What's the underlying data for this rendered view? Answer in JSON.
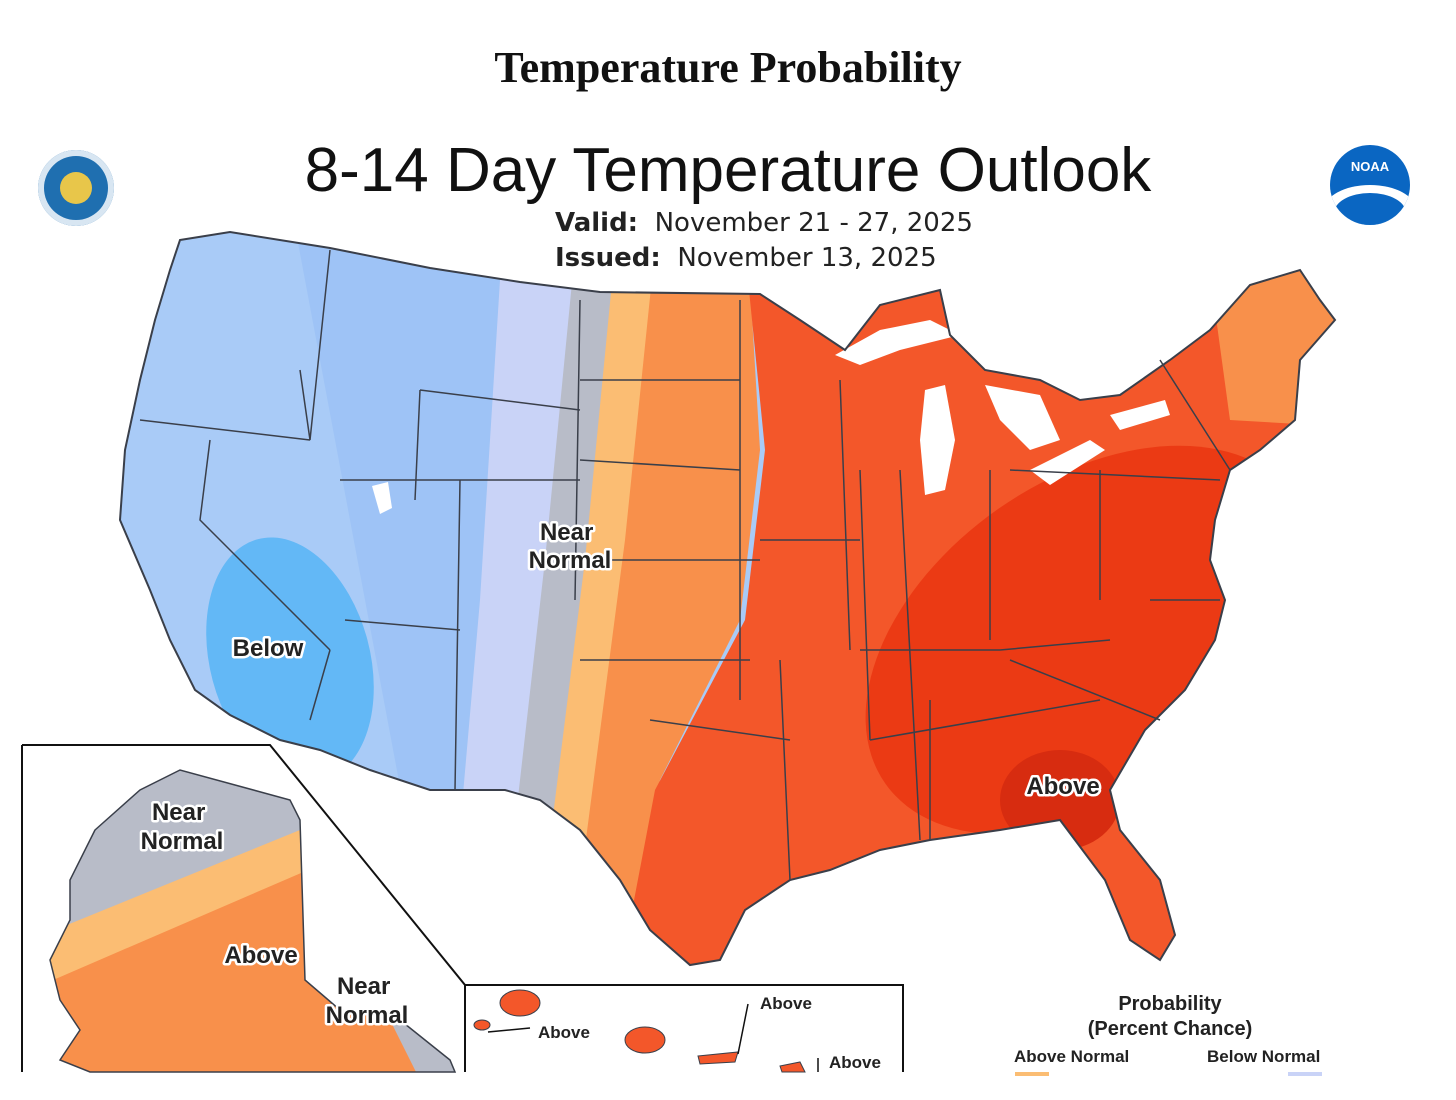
{
  "page_title": "Temperature Probability",
  "map": {
    "title": "8-14 Day Temperature Outlook",
    "valid_label": "Valid:",
    "valid_value": "November 21 - 27, 2025",
    "issued_label": "Issued:",
    "issued_value": "November 13, 2025"
  },
  "regions": {
    "conus_near_normal": "Near\nNormal",
    "conus_below": "Below",
    "conus_above": "Above",
    "alaska_near_normal": "Near\nNormal",
    "alaska_above": "Above",
    "alaska_near_normal_2": "Near\nNormal",
    "hawaii_above_1": "Above",
    "hawaii_above_2": "Above",
    "hawaii_above_3": "Above"
  },
  "legend": {
    "title": "Probability\n(Percent Chance)",
    "above_normal": "Above Normal",
    "below_normal": "Below Normal"
  },
  "colors": {
    "below_light": "#a9cbf7",
    "below_mid": "#9ec3f6",
    "below_strong": "#63b8f6",
    "near_normal_light": "#c9d3f7",
    "near_normal": "#b8bcc8",
    "above_light": "#fbbd73",
    "above_mid": "#f8904b",
    "above_high": "#f3572a",
    "above_strong": "#eb3a14",
    "above_max": "#d72c10"
  }
}
